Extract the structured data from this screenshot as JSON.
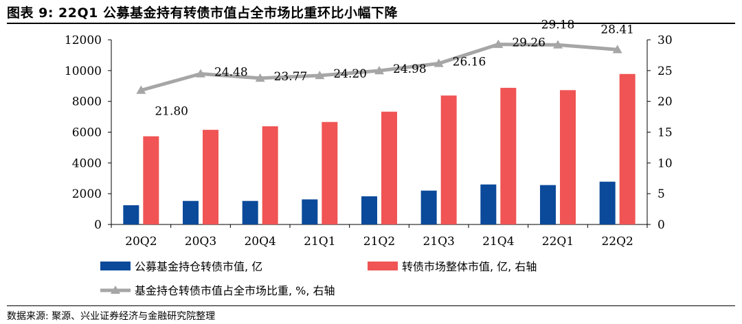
{
  "header": {
    "title": "图表 9:  22Q1 公募基金持有转债市值占全市场比重环比小幅下降"
  },
  "footer": {
    "source": "数据来源:  聚源、兴业证券经济与金融研究院整理"
  },
  "chart_data": {
    "type": "bar+line",
    "categories": [
      "20Q2",
      "20Q3",
      "20Q4",
      "21Q1",
      "21Q2",
      "21Q3",
      "21Q4",
      "22Q1",
      "22Q2"
    ],
    "y_left": {
      "min": 0,
      "max": 12000,
      "ticks": [
        0,
        2000,
        4000,
        6000,
        8000,
        10000,
        12000
      ]
    },
    "y_right": {
      "min": 0,
      "max": 30,
      "ticks": [
        0,
        5,
        10,
        15,
        20,
        25,
        30
      ]
    },
    "grid": false,
    "series": [
      {
        "name": "公募基金持仓转债市值, 亿",
        "type": "bar",
        "axis": "left",
        "color": "#0b4a9a",
        "values": [
          1250,
          1530,
          1530,
          1630,
          1830,
          2200,
          2600,
          2560,
          2780
        ]
      },
      {
        "name": "转债市场整体市值, 亿, 右轴",
        "type": "bar",
        "axis": "left",
        "color": "#f05454",
        "values": [
          5730,
          6150,
          6380,
          6660,
          7330,
          8380,
          8880,
          8730,
          9780
        ]
      },
      {
        "name": "基金持仓转债市值占全市场比重, %, 右轴",
        "type": "line",
        "axis": "right",
        "color": "#a6a6a6",
        "values": [
          21.8,
          24.48,
          23.77,
          24.2,
          24.98,
          26.16,
          29.26,
          29.18,
          28.41
        ],
        "labels": [
          "21.80",
          "24.48",
          "23.77",
          "24.20",
          "24.98",
          "26.16",
          "29.26",
          "29.18",
          "28.41"
        ]
      }
    ]
  }
}
